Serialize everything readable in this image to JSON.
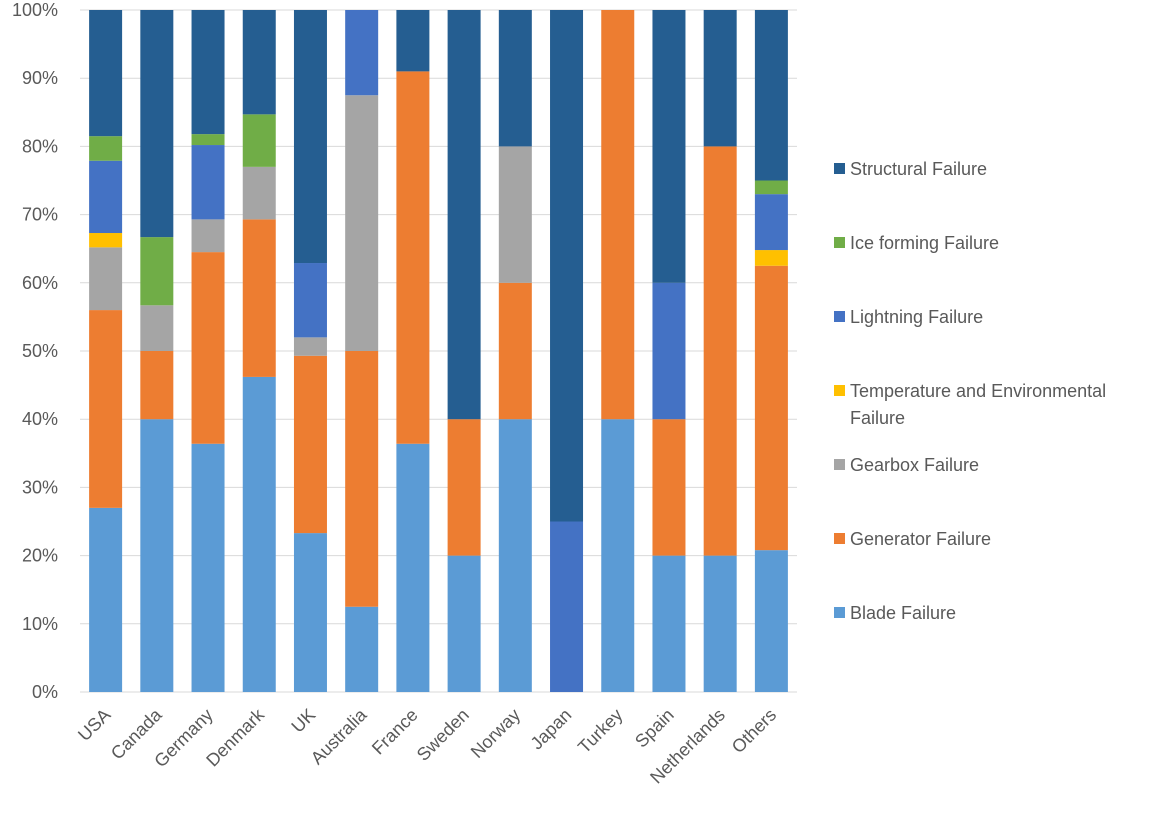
{
  "chart_data": {
    "type": "bar",
    "stacked": true,
    "normalized_percent": true,
    "title": "",
    "xlabel": "",
    "ylabel": "",
    "ylim": [
      0,
      100
    ],
    "yticks": [
      "0%",
      "10%",
      "20%",
      "30%",
      "40%",
      "50%",
      "60%",
      "70%",
      "80%",
      "90%",
      "100%"
    ],
    "grid": "horizontal",
    "legend_position": "right",
    "categories": [
      "USA",
      "Canada",
      "Germany",
      "Denmark",
      "UK",
      "Australia",
      "France",
      "Sweden",
      "Norway",
      "Japan",
      "Turkey",
      "Spain",
      "Netherlands",
      "Others"
    ],
    "series": [
      {
        "name": "Blade Failure",
        "color": "#5b9bd5",
        "values": [
          27,
          40,
          36.4,
          46.2,
          23.3,
          12.5,
          36.4,
          20,
          40,
          0,
          40,
          20,
          20,
          20.8
        ]
      },
      {
        "name": "Generator Failure",
        "color": "#ed7d31",
        "values": [
          29,
          10,
          28.1,
          23.1,
          26,
          37.5,
          54.6,
          20,
          20,
          0,
          60,
          20,
          60,
          41.7
        ]
      },
      {
        "name": "Gearbox Failure",
        "color": "#a5a5a5",
        "values": [
          9.2,
          6.7,
          4.8,
          7.7,
          2.7,
          37.5,
          0,
          0,
          20,
          0,
          0,
          0,
          0,
          0
        ]
      },
      {
        "name": "Temperature and Environmental Failure",
        "color": "#ffc000",
        "values": [
          2.1,
          0,
          0,
          0,
          0,
          0,
          0,
          0,
          0,
          0,
          0,
          0,
          0,
          2.3
        ]
      },
      {
        "name": "Lightning Failure",
        "color": "#4472c4",
        "values": [
          10.6,
          0,
          10.9,
          0,
          10.9,
          12.5,
          0,
          0,
          0,
          25,
          0,
          20,
          0,
          8.2
        ]
      },
      {
        "name": "Ice forming Failure",
        "color": "#70ad47",
        "values": [
          3.6,
          10,
          1.6,
          7.7,
          0,
          0,
          0,
          0,
          0,
          0,
          0,
          0,
          0,
          2
        ]
      },
      {
        "name": "Structural Failure",
        "color": "#255e91",
        "values": [
          18.5,
          33.3,
          18.2,
          15.3,
          37.1,
          0,
          9,
          60,
          20,
          75,
          0,
          40,
          20,
          25
        ]
      }
    ],
    "legend_order": [
      "Structural Failure",
      "Ice forming Failure",
      "Lightning Failure",
      "Temperature and Environmental Failure",
      "Gearbox Failure",
      "Generator Failure",
      "Blade Failure"
    ]
  }
}
